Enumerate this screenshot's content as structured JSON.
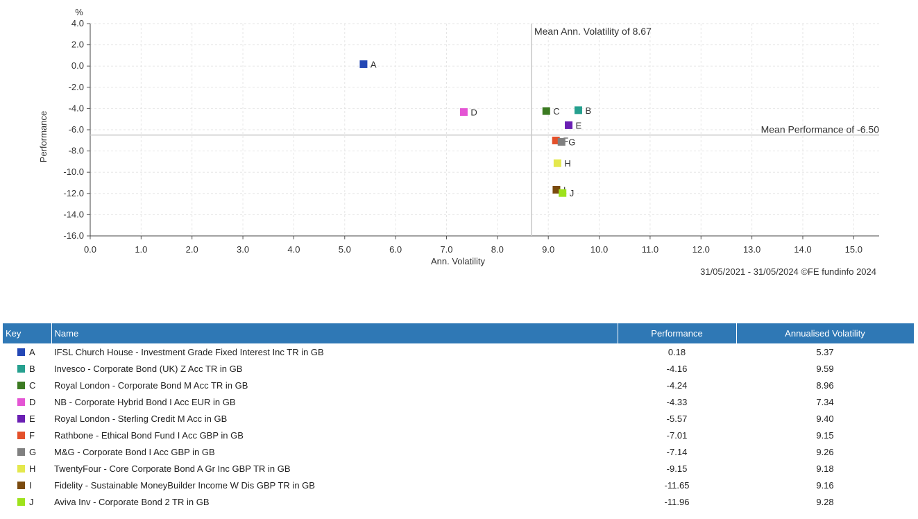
{
  "chart_data": {
    "type": "scatter",
    "xlabel": "Ann. Volatility",
    "ylabel": "Performance",
    "yunit": "%",
    "xlim": [
      0,
      15.5
    ],
    "ylim": [
      -16,
      4
    ],
    "xticks": [
      "0.0",
      "1.0",
      "2.0",
      "3.0",
      "4.0",
      "5.0",
      "6.0",
      "7.0",
      "8.0",
      "9.0",
      "10.0",
      "11.0",
      "12.0",
      "13.0",
      "14.0",
      "15.0"
    ],
    "yticks": [
      "4.0",
      "2.0",
      "0.0",
      "-2.0",
      "-4.0",
      "-6.0",
      "-8.0",
      "-10.0",
      "-12.0",
      "-14.0",
      "-16.0"
    ],
    "grid": true,
    "mean_volatility": 8.67,
    "mean_volatility_label": "Mean Ann. Volatility of 8.67",
    "mean_performance": -6.5,
    "mean_performance_label": "Mean Performance of -6.50",
    "points": [
      {
        "key": "A",
        "x": 5.37,
        "y": 0.18,
        "color": "#2347b5"
      },
      {
        "key": "B",
        "x": 9.59,
        "y": -4.16,
        "color": "#26a08f"
      },
      {
        "key": "C",
        "x": 8.96,
        "y": -4.24,
        "color": "#3b7a21"
      },
      {
        "key": "D",
        "x": 7.34,
        "y": -4.33,
        "color": "#e455d4"
      },
      {
        "key": "E",
        "x": 9.4,
        "y": -5.57,
        "color": "#6a1fb3"
      },
      {
        "key": "F",
        "x": 9.15,
        "y": -7.01,
        "color": "#e4502a"
      },
      {
        "key": "G",
        "x": 9.26,
        "y": -7.14,
        "color": "#808080"
      },
      {
        "key": "H",
        "x": 9.18,
        "y": -9.15,
        "color": "#e4e84d"
      },
      {
        "key": "I",
        "x": 9.16,
        "y": -11.65,
        "color": "#7a4a0e"
      },
      {
        "key": "J",
        "x": 9.28,
        "y": -11.96,
        "color": "#9ee21c"
      }
    ]
  },
  "source_text": "31/05/2021 - 31/05/2024 ©FE fundinfo 2024",
  "table": {
    "headers": {
      "key": "Key",
      "name": "Name",
      "performance": "Performance",
      "volatility": "Annualised Volatility"
    },
    "rows": [
      {
        "key": "A",
        "name": "IFSL Church House - Investment Grade Fixed Interest Inc TR in GB",
        "performance": "0.18",
        "volatility": "5.37"
      },
      {
        "key": "B",
        "name": "Invesco - Corporate Bond (UK) Z Acc TR in GB",
        "performance": "-4.16",
        "volatility": "9.59"
      },
      {
        "key": "C",
        "name": "Royal London - Corporate Bond M Acc TR in GB",
        "performance": "-4.24",
        "volatility": "8.96"
      },
      {
        "key": "D",
        "name": "NB - Corporate Hybrid Bond I Acc EUR in GB",
        "performance": "-4.33",
        "volatility": "7.34"
      },
      {
        "key": "E",
        "name": "Royal London - Sterling Credit M Acc in GB",
        "performance": "-5.57",
        "volatility": "9.40"
      },
      {
        "key": "F",
        "name": "Rathbone - Ethical Bond Fund I Acc GBP in GB",
        "performance": "-7.01",
        "volatility": "9.15"
      },
      {
        "key": "G",
        "name": "M&G - Corporate Bond I Acc GBP in GB",
        "performance": "-7.14",
        "volatility": "9.26"
      },
      {
        "key": "H",
        "name": "TwentyFour - Core Corporate Bond A Gr Inc GBP TR in GB",
        "performance": "-9.15",
        "volatility": "9.18"
      },
      {
        "key": "I",
        "name": "Fidelity - Sustainable MoneyBuilder Income W Dis GBP TR in GB",
        "performance": "-11.65",
        "volatility": "9.16"
      },
      {
        "key": "J",
        "name": "Aviva Inv - Corporate Bond 2 TR in GB",
        "performance": "-11.96",
        "volatility": "9.28"
      }
    ]
  }
}
